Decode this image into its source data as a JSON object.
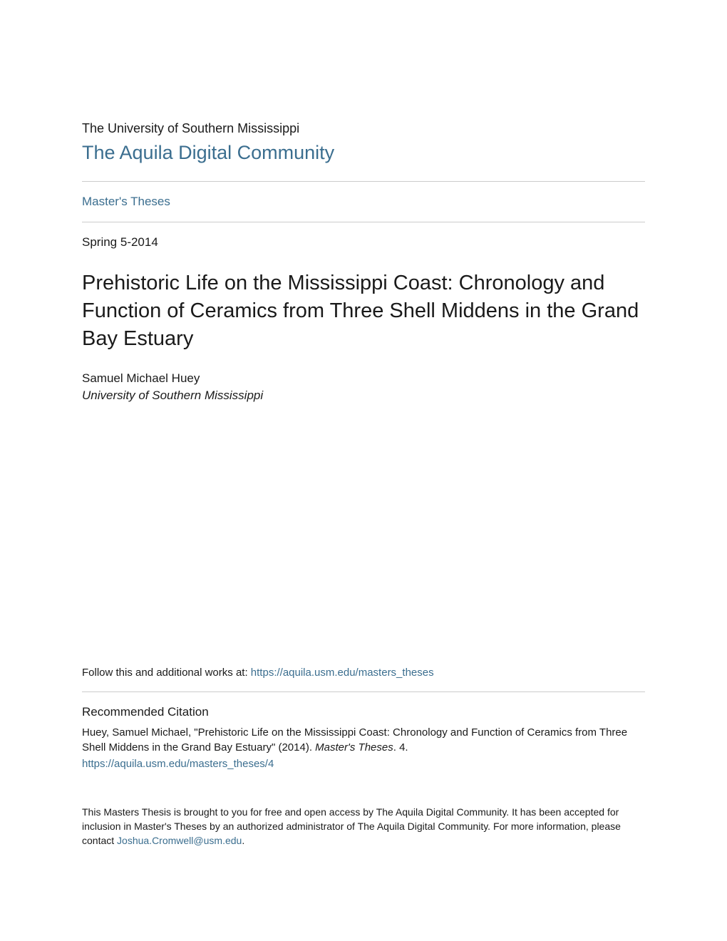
{
  "header": {
    "university": "The University of Southern Mississippi",
    "community": "The Aquila Digital Community",
    "breadcrumb": "Master's Theses"
  },
  "document": {
    "date": "Spring 5-2014",
    "title": "Prehistoric Life on the Mississippi Coast: Chronology and Function of Ceramics from Three Shell Middens in the Grand Bay Estuary",
    "author_name": "Samuel Michael Huey",
    "author_affiliation": "University of Southern Mississippi"
  },
  "follow": {
    "prefix": "Follow this and additional works at: ",
    "link_text": "https://aquila.usm.edu/masters_theses"
  },
  "citation": {
    "heading": "Recommended Citation",
    "text_part1": "Huey, Samuel Michael, \"Prehistoric Life on the Mississippi Coast: Chronology and Function of Ceramics from Three Shell Middens in the Grand Bay Estuary\" (2014). ",
    "text_italic": "Master's Theses",
    "text_part2": ". 4.",
    "link": "https://aquila.usm.edu/masters_theses/4"
  },
  "footer": {
    "text_part1": "This Masters Thesis is brought to you for free and open access by The Aquila Digital Community. It has been accepted for inclusion in Master's Theses by an authorized administrator of The Aquila Digital Community. For more information, please contact ",
    "contact_link": "Joshua.Cromwell@usm.edu",
    "text_part2": "."
  },
  "colors": {
    "link_color": "#3b6e8f",
    "text_color": "#1a1a1a",
    "divider_color": "#cccccc",
    "background": "#ffffff"
  }
}
